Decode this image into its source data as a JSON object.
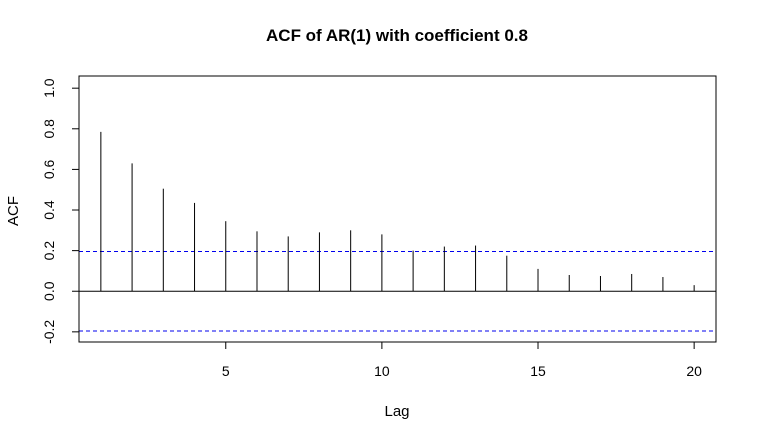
{
  "chart_data": {
    "type": "bar",
    "title": "ACF of AR(1) with coefficient 0.8",
    "xlabel": "Lag",
    "ylabel": "ACF",
    "lags": [
      1,
      2,
      3,
      4,
      5,
      6,
      7,
      8,
      9,
      10,
      11,
      12,
      13,
      14,
      15,
      16,
      17,
      18,
      19,
      20
    ],
    "values": [
      0.785,
      0.63,
      0.505,
      0.435,
      0.345,
      0.295,
      0.27,
      0.29,
      0.3,
      0.28,
      0.2,
      0.22,
      0.225,
      0.175,
      0.11,
      0.08,
      0.075,
      0.085,
      0.07,
      0.03
    ],
    "confidence_bound": 0.196,
    "xlim": [
      0.3,
      20.7
    ],
    "ylim": [
      -0.25,
      1.06
    ],
    "x_ticks": [
      5,
      10,
      15,
      20
    ],
    "y_ticks": [
      -0.2,
      0.0,
      0.2,
      0.4,
      0.6,
      0.8,
      1.0
    ],
    "x_tick_labels": [
      "5",
      "10",
      "15",
      "20"
    ],
    "y_tick_labels": [
      "-0.2",
      "0.0",
      "0.2",
      "0.4",
      "0.6",
      "0.8",
      "1.0"
    ],
    "colors": {
      "bars": "#000000",
      "zero_line": "#000000",
      "confidence_lines": "#0000ee",
      "box": "#000000"
    },
    "grid": false,
    "legend": "none"
  }
}
